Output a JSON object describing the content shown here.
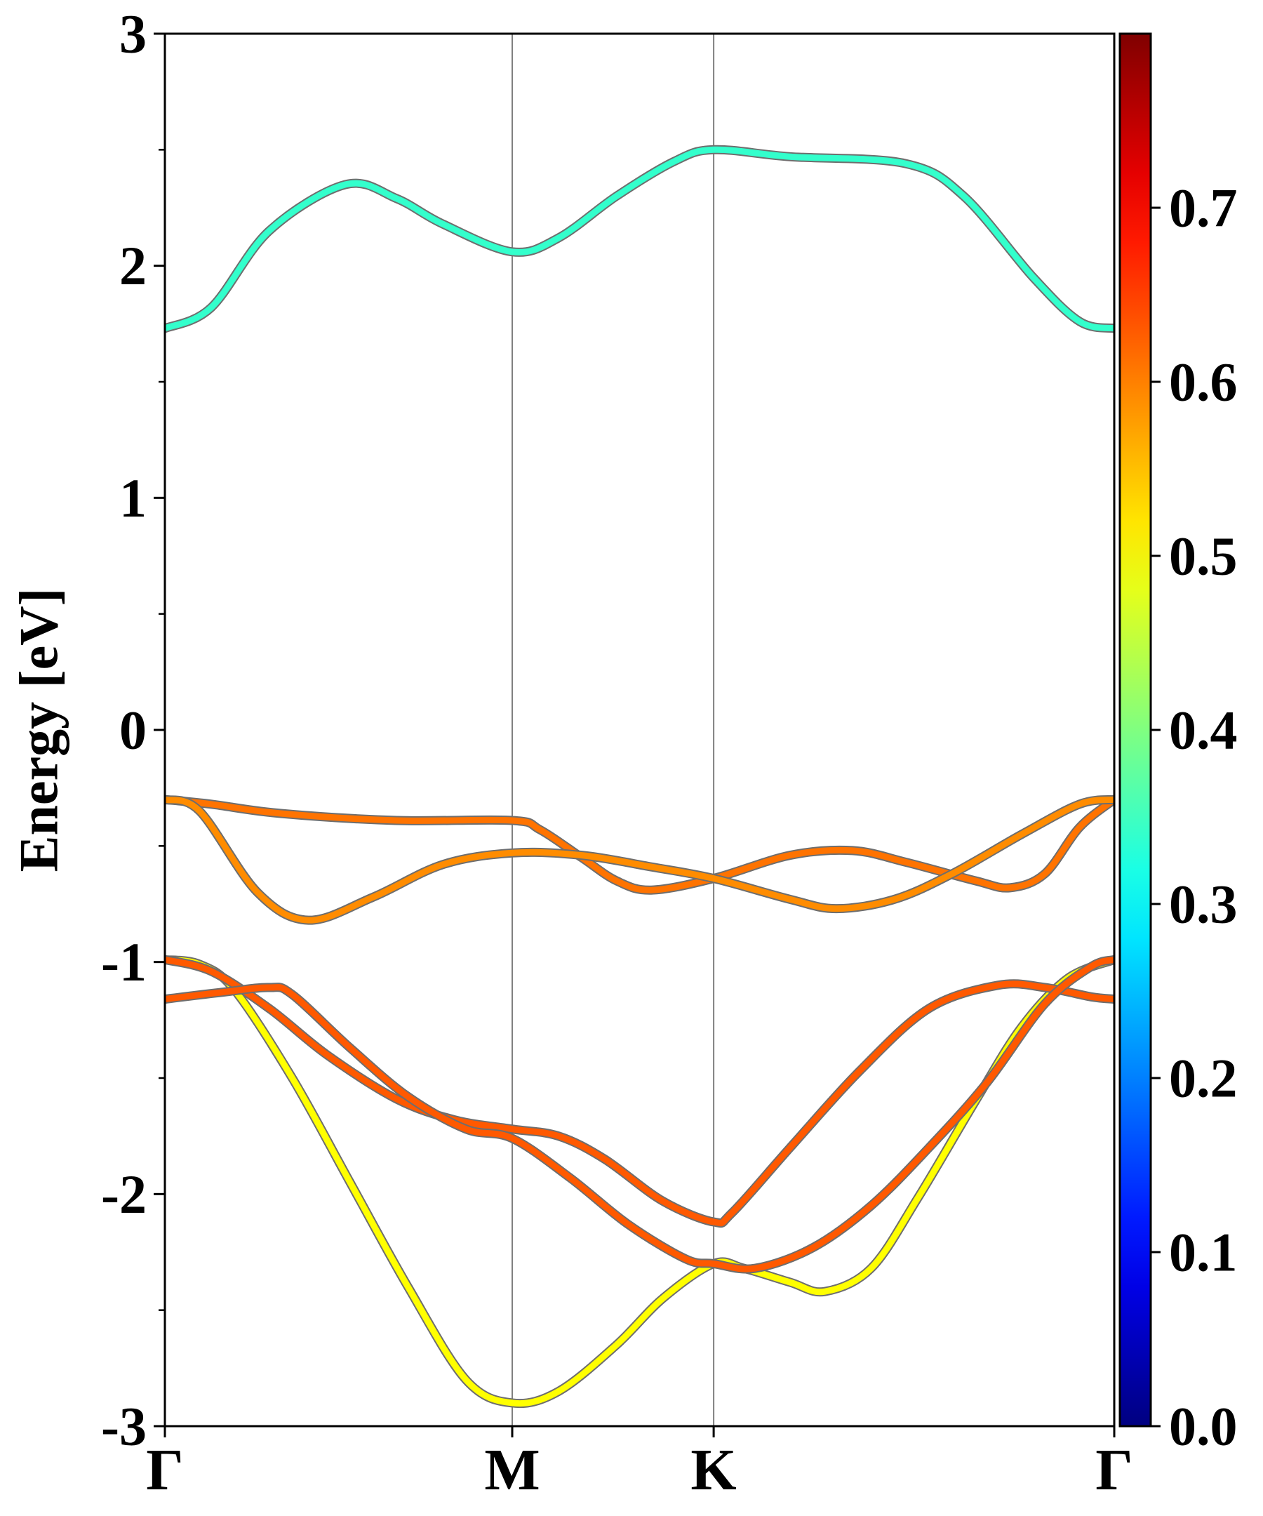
{
  "chart_data": {
    "type": "line",
    "title": "",
    "ylabel": "Energy [eV]",
    "xlabel": "",
    "ylim": [
      -3,
      3
    ],
    "xlim": [
      0,
      4.1
    ],
    "y_ticks": [
      {
        "value": 3,
        "label": "3"
      },
      {
        "value": 2,
        "label": "2"
      },
      {
        "value": 1,
        "label": "1"
      },
      {
        "value": 0,
        "label": "0"
      },
      {
        "value": -1,
        "label": "-1"
      },
      {
        "value": -2,
        "label": "-2"
      },
      {
        "value": -3,
        "label": "-3"
      }
    ],
    "y_minor_ticks": [
      2.5,
      1.5,
      0.5,
      -0.5,
      -1.5,
      -2.5
    ],
    "k_points": [
      {
        "label": "Γ",
        "x": 0
      },
      {
        "label": "M",
        "x": 1.5
      },
      {
        "label": "K",
        "x": 2.37
      },
      {
        "label": "Γ",
        "x": 4.1
      }
    ],
    "colorbar": {
      "colormap": "jet",
      "min": 0.0,
      "max": 0.8,
      "ticks": [
        {
          "value": 0.0,
          "label": "0.0"
        },
        {
          "value": 0.1,
          "label": "0.1"
        },
        {
          "value": 0.2,
          "label": "0.2"
        },
        {
          "value": 0.3,
          "label": "0.3"
        },
        {
          "value": 0.4,
          "label": "0.4"
        },
        {
          "value": 0.5,
          "label": "0.5"
        },
        {
          "value": 0.6,
          "label": "0.6"
        },
        {
          "value": 0.7,
          "label": "0.7"
        }
      ]
    },
    "series": [
      {
        "weight": 0.34,
        "points": [
          [
            0,
            1.73
          ],
          [
            0.2,
            1.82
          ],
          [
            0.45,
            2.15
          ],
          [
            0.78,
            2.35
          ],
          [
            1.0,
            2.29
          ],
          [
            1.2,
            2.18
          ],
          [
            1.5,
            2.06
          ],
          [
            1.7,
            2.12
          ],
          [
            1.95,
            2.3
          ],
          [
            2.2,
            2.45
          ],
          [
            2.37,
            2.5
          ],
          [
            2.7,
            2.47
          ],
          [
            3.2,
            2.44
          ],
          [
            3.45,
            2.3
          ],
          [
            3.75,
            1.95
          ],
          [
            3.95,
            1.76
          ],
          [
            4.1,
            1.73
          ]
        ]
      },
      {
        "weight": 0.61,
        "points": [
          [
            0,
            -0.3
          ],
          [
            0.2,
            -0.32
          ],
          [
            0.5,
            -0.36
          ],
          [
            1.0,
            -0.39
          ],
          [
            1.5,
            -0.39
          ],
          [
            1.62,
            -0.43
          ],
          [
            1.8,
            -0.55
          ],
          [
            1.95,
            -0.65
          ],
          [
            2.1,
            -0.69
          ],
          [
            2.37,
            -0.64
          ],
          [
            2.7,
            -0.54
          ],
          [
            2.97,
            -0.52
          ],
          [
            3.2,
            -0.57
          ],
          [
            3.5,
            -0.65
          ],
          [
            3.65,
            -0.68
          ],
          [
            3.8,
            -0.62
          ],
          [
            3.95,
            -0.42
          ],
          [
            4.1,
            -0.3
          ]
        ]
      },
      {
        "weight": 0.59,
        "points": [
          [
            0,
            -0.3
          ],
          [
            0.15,
            -0.35
          ],
          [
            0.4,
            -0.7
          ],
          [
            0.62,
            -0.82
          ],
          [
            0.9,
            -0.72
          ],
          [
            1.2,
            -0.58
          ],
          [
            1.5,
            -0.53
          ],
          [
            1.8,
            -0.54
          ],
          [
            2.1,
            -0.59
          ],
          [
            2.37,
            -0.64
          ],
          [
            2.7,
            -0.73
          ],
          [
            2.9,
            -0.77
          ],
          [
            3.15,
            -0.73
          ],
          [
            3.4,
            -0.62
          ],
          [
            3.7,
            -0.45
          ],
          [
            3.95,
            -0.32
          ],
          [
            4.1,
            -0.3
          ]
        ]
      },
      {
        "weight": 0.5,
        "points": [
          [
            0,
            -0.99
          ],
          [
            0.15,
            -1.01
          ],
          [
            0.3,
            -1.12
          ],
          [
            0.55,
            -1.5
          ],
          [
            0.8,
            -1.95
          ],
          [
            1.05,
            -2.4
          ],
          [
            1.3,
            -2.8
          ],
          [
            1.5,
            -2.9
          ],
          [
            1.7,
            -2.85
          ],
          [
            1.95,
            -2.65
          ],
          [
            2.15,
            -2.45
          ],
          [
            2.37,
            -2.3
          ],
          [
            2.5,
            -2.32
          ],
          [
            2.7,
            -2.38
          ],
          [
            2.85,
            -2.42
          ],
          [
            3.05,
            -2.32
          ],
          [
            3.25,
            -2.02
          ],
          [
            3.5,
            -1.6
          ],
          [
            3.7,
            -1.28
          ],
          [
            3.9,
            -1.07
          ],
          [
            4.1,
            -0.99
          ]
        ]
      },
      {
        "weight": 0.63,
        "points": [
          [
            0,
            -0.99
          ],
          [
            0.2,
            -1.04
          ],
          [
            0.45,
            -1.2
          ],
          [
            0.7,
            -1.4
          ],
          [
            1.0,
            -1.59
          ],
          [
            1.25,
            -1.68
          ],
          [
            1.5,
            -1.72
          ],
          [
            1.7,
            -1.75
          ],
          [
            1.9,
            -1.85
          ],
          [
            2.15,
            -2.03
          ],
          [
            2.37,
            -2.12
          ],
          [
            2.45,
            -2.08
          ],
          [
            2.7,
            -1.8
          ],
          [
            3.0,
            -1.47
          ],
          [
            3.3,
            -1.2
          ],
          [
            3.6,
            -1.1
          ],
          [
            3.8,
            -1.11
          ],
          [
            4.0,
            -1.15
          ],
          [
            4.1,
            -1.16
          ]
        ]
      },
      {
        "weight": 0.63,
        "points": [
          [
            0,
            -1.16
          ],
          [
            0.25,
            -1.13
          ],
          [
            0.45,
            -1.11
          ],
          [
            0.55,
            -1.14
          ],
          [
            0.8,
            -1.37
          ],
          [
            1.05,
            -1.58
          ],
          [
            1.3,
            -1.72
          ],
          [
            1.5,
            -1.76
          ],
          [
            1.75,
            -1.93
          ],
          [
            2.0,
            -2.13
          ],
          [
            2.25,
            -2.28
          ],
          [
            2.37,
            -2.3
          ],
          [
            2.55,
            -2.32
          ],
          [
            2.8,
            -2.23
          ],
          [
            3.05,
            -2.05
          ],
          [
            3.3,
            -1.8
          ],
          [
            3.55,
            -1.52
          ],
          [
            3.8,
            -1.18
          ],
          [
            4.0,
            -1.02
          ],
          [
            4.1,
            -0.99
          ]
        ]
      }
    ]
  }
}
